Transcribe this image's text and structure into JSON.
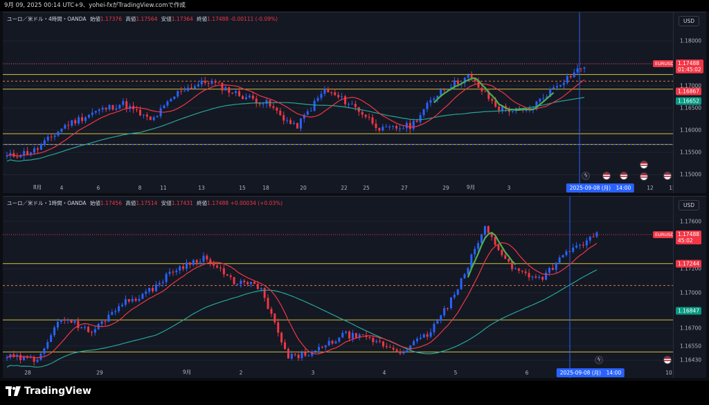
{
  "top_bar": {
    "text": "9月 09, 2025 00:14 UTC+9、yohei-fxがTradingView.comで作成"
  },
  "panels": [
    {
      "id": "4h",
      "legend": {
        "title": "ユーロ／米ドル・4時間・OANDA",
        "o_label": "始値",
        "o": "1.17376",
        "h_label": "高値",
        "h": "1.17564",
        "l_label": "安値",
        "l": "1.17364",
        "c_label": "終値",
        "c": "1.17488",
        "chg": "-0.00111 (-0.09%)"
      },
      "currency_button": "USD",
      "y_ticks": [
        "1.18000",
        "1.17500",
        "1.17000",
        "1.16500",
        "1.16000",
        "1.15500",
        "1.15000"
      ],
      "y_range": [
        1.1485,
        1.183
      ],
      "price_tags": [
        {
          "text": "1.17488",
          "sub": "01:45:02",
          "value": 1.17488,
          "color": "red"
        },
        {
          "text": "1.16867",
          "value": 1.16867,
          "color": "red"
        },
        {
          "text": "1.16652",
          "value": 1.16652,
          "color": "teal"
        }
      ],
      "symbol_tag": "EURUSD",
      "x_ticks": [
        "8月",
        "4",
        "6",
        "8",
        "11",
        "13",
        "15",
        "18",
        "20",
        "22",
        "25",
        "27",
        "29",
        "9月",
        "3",
        "12",
        "15"
      ],
      "crosshair_date": "2025-09-08 (月)　14:00",
      "horizontal_levels": [
        1.1725,
        1.171,
        1.1692,
        1.1592,
        1.1568
      ],
      "event_icons": [
        "lightning-icon",
        "us-flag-icon",
        "us-flag-icon",
        "us-flag-icon",
        "us-flag-icon",
        "blue-dot-icon",
        "us-flag-icon"
      ]
    },
    {
      "id": "1h",
      "legend": {
        "title": "ユーロ／米ドル・1時間・OANDA",
        "o_label": "始値",
        "o": "1.17456",
        "h_label": "高値",
        "h": "1.17514",
        "l_label": "安値",
        "l": "1.17431",
        "c_label": "終値",
        "c": "1.17488",
        "chg": "+0.00034 (+0.03%)"
      },
      "currency_button": "USD",
      "y_ticks": [
        "1.17600",
        "1.17200",
        "1.17000",
        "1.16700",
        "1.16550",
        "1.16430"
      ],
      "y_range": [
        1.1638,
        1.1768
      ],
      "price_tags": [
        {
          "text": "1.17488",
          "sub": "45:02",
          "value": 1.17488,
          "color": "red"
        },
        {
          "text": "1.17244",
          "value": 1.17244,
          "color": "red"
        },
        {
          "text": "1.16847",
          "value": 1.16847,
          "color": "teal"
        }
      ],
      "symbol_tag": "EURUSD",
      "x_ticks": [
        "28",
        "29",
        "9月",
        "2",
        "3",
        "4",
        "5",
        "6",
        "10"
      ],
      "crosshair_date": "2025-09-08 (月)　14:00",
      "horizontal_levels": [
        1.17244,
        1.1706,
        1.1677,
        1.165
      ],
      "event_icons": [
        "lightning-icon",
        "us-flag-icon"
      ]
    }
  ],
  "footer": {
    "brand": "TradingView"
  },
  "colors": {
    "up": "#089981",
    "down": "#f23645",
    "candle_up": "#2962ff",
    "ma_fast": "#f23645",
    "ma_slow": "#26a69a",
    "level": "#d4c33c",
    "dashed": "#e8773d",
    "signal": "#4caf50"
  }
}
